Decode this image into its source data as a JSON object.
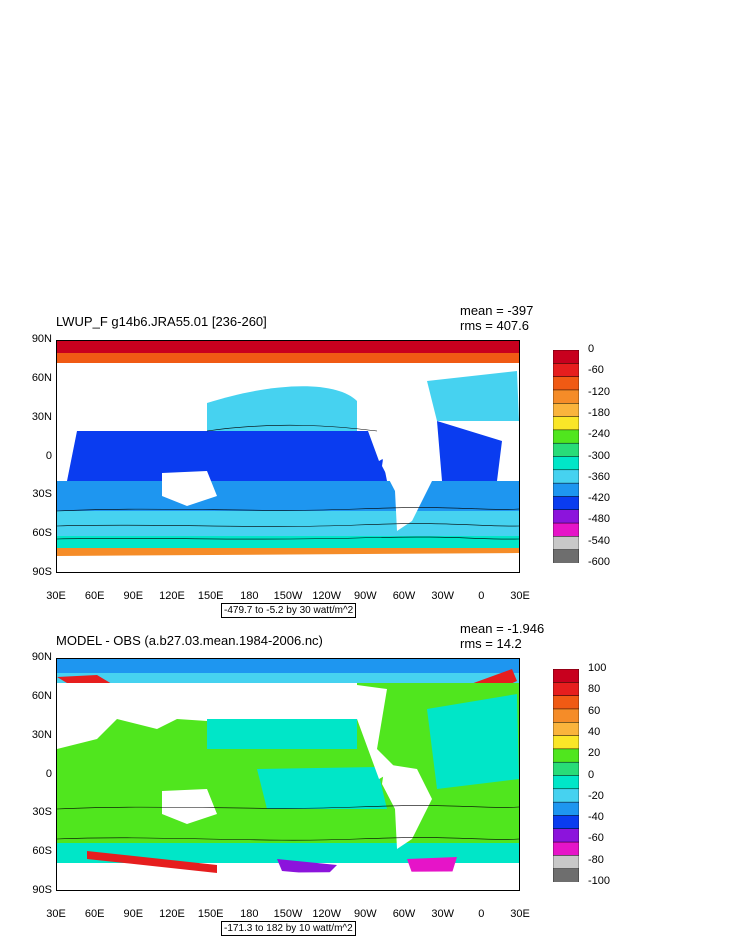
{
  "panels": [
    {
      "id": "top",
      "title": "LWUP_F g14b6.JRA55.01 [236-260]",
      "mean": "mean = -397",
      "rms": "rms = 407.6",
      "range_text": "-479.7 to -5.2 by 30 watt/m^2",
      "colorbar_labels": [
        "0",
        "-60",
        "-120",
        "-180",
        "-240",
        "-300",
        "-360",
        "-420",
        "-480",
        "-540",
        "-600"
      ],
      "colorbar_colors": [
        "#c8001e",
        "#e61e1e",
        "#f05a14",
        "#f58c28",
        "#fab43c",
        "#fae628",
        "#50e61e",
        "#28dc78",
        "#00e6c8",
        "#46d2f0",
        "#1e96f0",
        "#0a3cf0",
        "#8c14dc",
        "#e614c8",
        "#c8c8c8",
        "#6e6e6e"
      ]
    },
    {
      "id": "bottom",
      "title": "MODEL - OBS (a.b27.03.mean.1984-2006.nc)",
      "mean": "mean = -1.946",
      "rms": "rms = 14.2",
      "range_text": "-171.3 to 182 by 10 watt/m^2",
      "colorbar_labels": [
        "100",
        "80",
        "60",
        "40",
        "20",
        "0",
        "-20",
        "-40",
        "-60",
        "-80",
        "-100"
      ],
      "colorbar_colors": [
        "#c8001e",
        "#e61e1e",
        "#f05a14",
        "#f58c28",
        "#fab43c",
        "#fae628",
        "#50e61e",
        "#28dc78",
        "#00e6c8",
        "#46d2f0",
        "#1e96f0",
        "#0a3cf0",
        "#8c14dc",
        "#e614c8",
        "#c8c8c8",
        "#6e6e6e"
      ]
    }
  ],
  "lat_ticks": [
    "90N",
    "60N",
    "30N",
    "0",
    "30S",
    "60S",
    "90S"
  ],
  "lon_ticks": [
    "30E",
    "60E",
    "90E",
    "120E",
    "150E",
    "180",
    "150W",
    "120W",
    "90W",
    "60W",
    "30W",
    "0",
    "30E"
  ]
}
